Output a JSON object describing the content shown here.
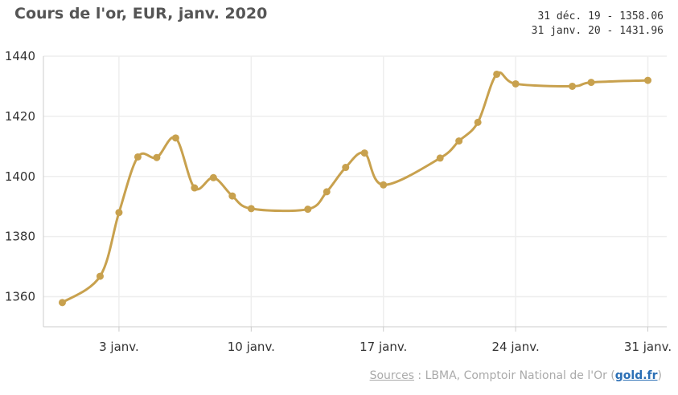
{
  "title": "Cours de l'or, EUR, janv. 2020",
  "range": {
    "start": "31 déc. 19 - 1358.06",
    "end": "31 janv. 20 - 1431.96"
  },
  "footer": {
    "sources_label": "Sources",
    "separator": " : ",
    "sources_text": "LBMA, Comptoir National de l'Or (",
    "link_text": "gold.fr",
    "close": ")"
  },
  "colors": {
    "line": "#c8a14e",
    "grid": "#eeeeee",
    "axis": "#cccccc"
  },
  "chart_data": {
    "type": "line",
    "title": "Cours de l'or, EUR, janv. 2020",
    "xlabel": "",
    "ylabel": "",
    "ylim": [
      1350,
      1440
    ],
    "yticks": [
      1360,
      1380,
      1400,
      1420,
      1440
    ],
    "xlim": [
      "2019-12-30",
      "2020-02-01"
    ],
    "xticks": [
      {
        "date": "2020-01-03",
        "label": "3 janv."
      },
      {
        "date": "2020-01-10",
        "label": "10 janv."
      },
      {
        "date": "2020-01-17",
        "label": "17 janv."
      },
      {
        "date": "2020-01-24",
        "label": "24 janv."
      },
      {
        "date": "2020-01-31",
        "label": "31 janv."
      }
    ],
    "grid": true,
    "series": [
      {
        "points": [
          {
            "x": "2019-12-31",
            "y": 1358.06
          },
          {
            "x": "2020-01-02",
            "y": 1366.8
          },
          {
            "x": "2020-01-03",
            "y": 1388.0
          },
          {
            "x": "2020-01-04",
            "y": 1406.5
          },
          {
            "x": "2020-01-05",
            "y": 1406.3
          },
          {
            "x": "2020-01-06",
            "y": 1412.8
          },
          {
            "x": "2020-01-07",
            "y": 1396.2
          },
          {
            "x": "2020-01-08",
            "y": 1399.6
          },
          {
            "x": "2020-01-09",
            "y": 1393.5
          },
          {
            "x": "2020-01-10",
            "y": 1389.3
          },
          {
            "x": "2020-01-13",
            "y": 1389.1
          },
          {
            "x": "2020-01-14",
            "y": 1394.9
          },
          {
            "x": "2020-01-15",
            "y": 1403.0
          },
          {
            "x": "2020-01-16",
            "y": 1407.8
          },
          {
            "x": "2020-01-17",
            "y": 1397.2
          },
          {
            "x": "2020-01-20",
            "y": 1406.1
          },
          {
            "x": "2020-01-21",
            "y": 1411.8
          },
          {
            "x": "2020-01-22",
            "y": 1418.0
          },
          {
            "x": "2020-01-23",
            "y": 1434.0
          },
          {
            "x": "2020-01-24",
            "y": 1430.8
          },
          {
            "x": "2020-01-27",
            "y": 1430.0
          },
          {
            "x": "2020-01-28",
            "y": 1431.3
          },
          {
            "x": "2020-01-31",
            "y": 1431.96
          }
        ]
      }
    ]
  }
}
